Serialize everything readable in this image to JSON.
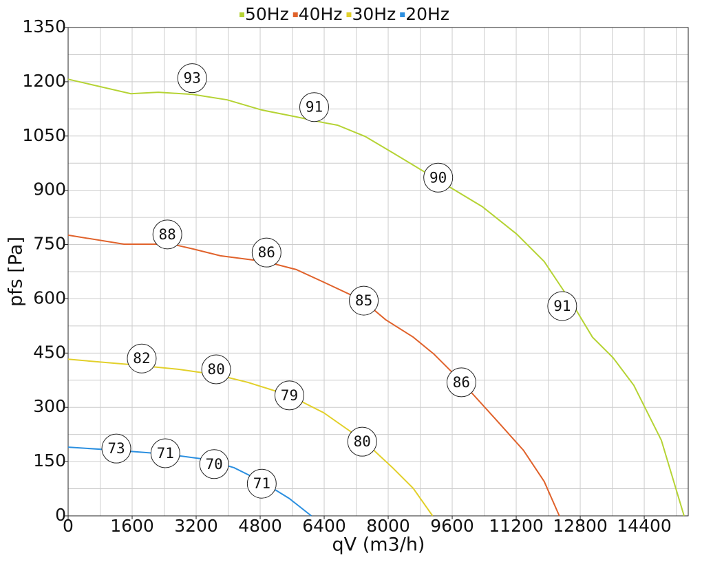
{
  "chart_data": {
    "type": "line",
    "xlabel": "qV (m3/h)",
    "ylabel": "pfs [Pa]",
    "xlim": [
      0,
      15500
    ],
    "ylim": [
      0,
      1350
    ],
    "xticks": [
      0,
      1600,
      3200,
      4800,
      6400,
      8000,
      9600,
      11200,
      12800,
      14400
    ],
    "yticks": [
      0,
      150,
      300,
      450,
      600,
      750,
      900,
      1050,
      1200,
      1350
    ],
    "grid": true,
    "xgrid": [
      800,
      1600,
      2400,
      3200,
      4000,
      4800,
      5600,
      6400,
      7200,
      8000,
      8800,
      9600,
      10400,
      11200,
      12000,
      12800,
      13600,
      14400,
      15200
    ],
    "ygrid": [
      75,
      150,
      225,
      300,
      375,
      450,
      525,
      600,
      675,
      750,
      825,
      900,
      975,
      1050,
      1125,
      1200,
      1275
    ],
    "legend": "top",
    "series": [
      {
        "name": "50Hz",
        "color": "#b5d334",
        "x": [
          0,
          1567,
          2256,
          3117,
          3978,
          4839,
          5700,
          6389,
          6733,
          7422,
          8111,
          9145,
          10350,
          11211,
          11900,
          12589,
          13106,
          13622,
          14139,
          14828,
          15396
        ],
        "values": [
          1207,
          1167,
          1171,
          1165,
          1150,
          1122,
          1103,
          1087,
          1080,
          1049,
          1004,
          935,
          855,
          779,
          703,
          589,
          494,
          437,
          361,
          209,
          0
        ],
        "annotations": {
          "x": [
            3100,
            6150,
            9250,
            12350
          ],
          "y": [
            1210,
            1130,
            935,
            580
          ],
          "values": [
            93,
            91,
            90,
            91
          ]
        }
      },
      {
        "name": "40Hz",
        "color": "#e0622b",
        "x": [
          0,
          1395,
          2600,
          3117,
          3806,
          4925,
          5700,
          6389,
          7370,
          7939,
          8627,
          9144,
          9833,
          10694,
          11383,
          11900,
          12278
        ],
        "values": [
          776,
          751,
          751,
          738,
          719,
          703,
          681,
          646,
          595,
          542,
          494,
          447,
          371,
          266,
          181,
          95,
          0
        ],
        "annotations": {
          "x": [
            2480,
            4960,
            7390,
            9830
          ],
          "y": [
            778,
            728,
            595,
            369
          ],
          "values": [
            88,
            86,
            85,
            86
          ]
        }
      },
      {
        "name": "30Hz",
        "color": "#e2d02a",
        "x": [
          0,
          1567,
          2772,
          3720,
          4494,
          5527,
          6389,
          7370,
          8111,
          8627,
          9110
        ],
        "values": [
          433,
          418,
          405,
          390,
          369,
          333,
          285,
          209,
          133,
          76,
          0
        ],
        "annotations": {
          "x": [
            1840,
            3700,
            5530,
            7350
          ],
          "y": [
            435,
            405,
            333,
            205
          ],
          "values": [
            82,
            80,
            79,
            80
          ]
        }
      },
      {
        "name": "20Hz",
        "color": "#2b8fe0",
        "x": [
          0,
          1223,
          2428,
          3461,
          4150,
          4839,
          5527,
          6079
        ],
        "values": [
          190,
          181,
          171,
          156,
          133,
          95,
          48,
          0
        ],
        "annotations": {
          "x": [
            1205,
            2430,
            3650,
            4840
          ],
          "y": [
            186,
            173,
            143,
            89
          ],
          "values": [
            73,
            71,
            70,
            71
          ]
        }
      }
    ]
  }
}
